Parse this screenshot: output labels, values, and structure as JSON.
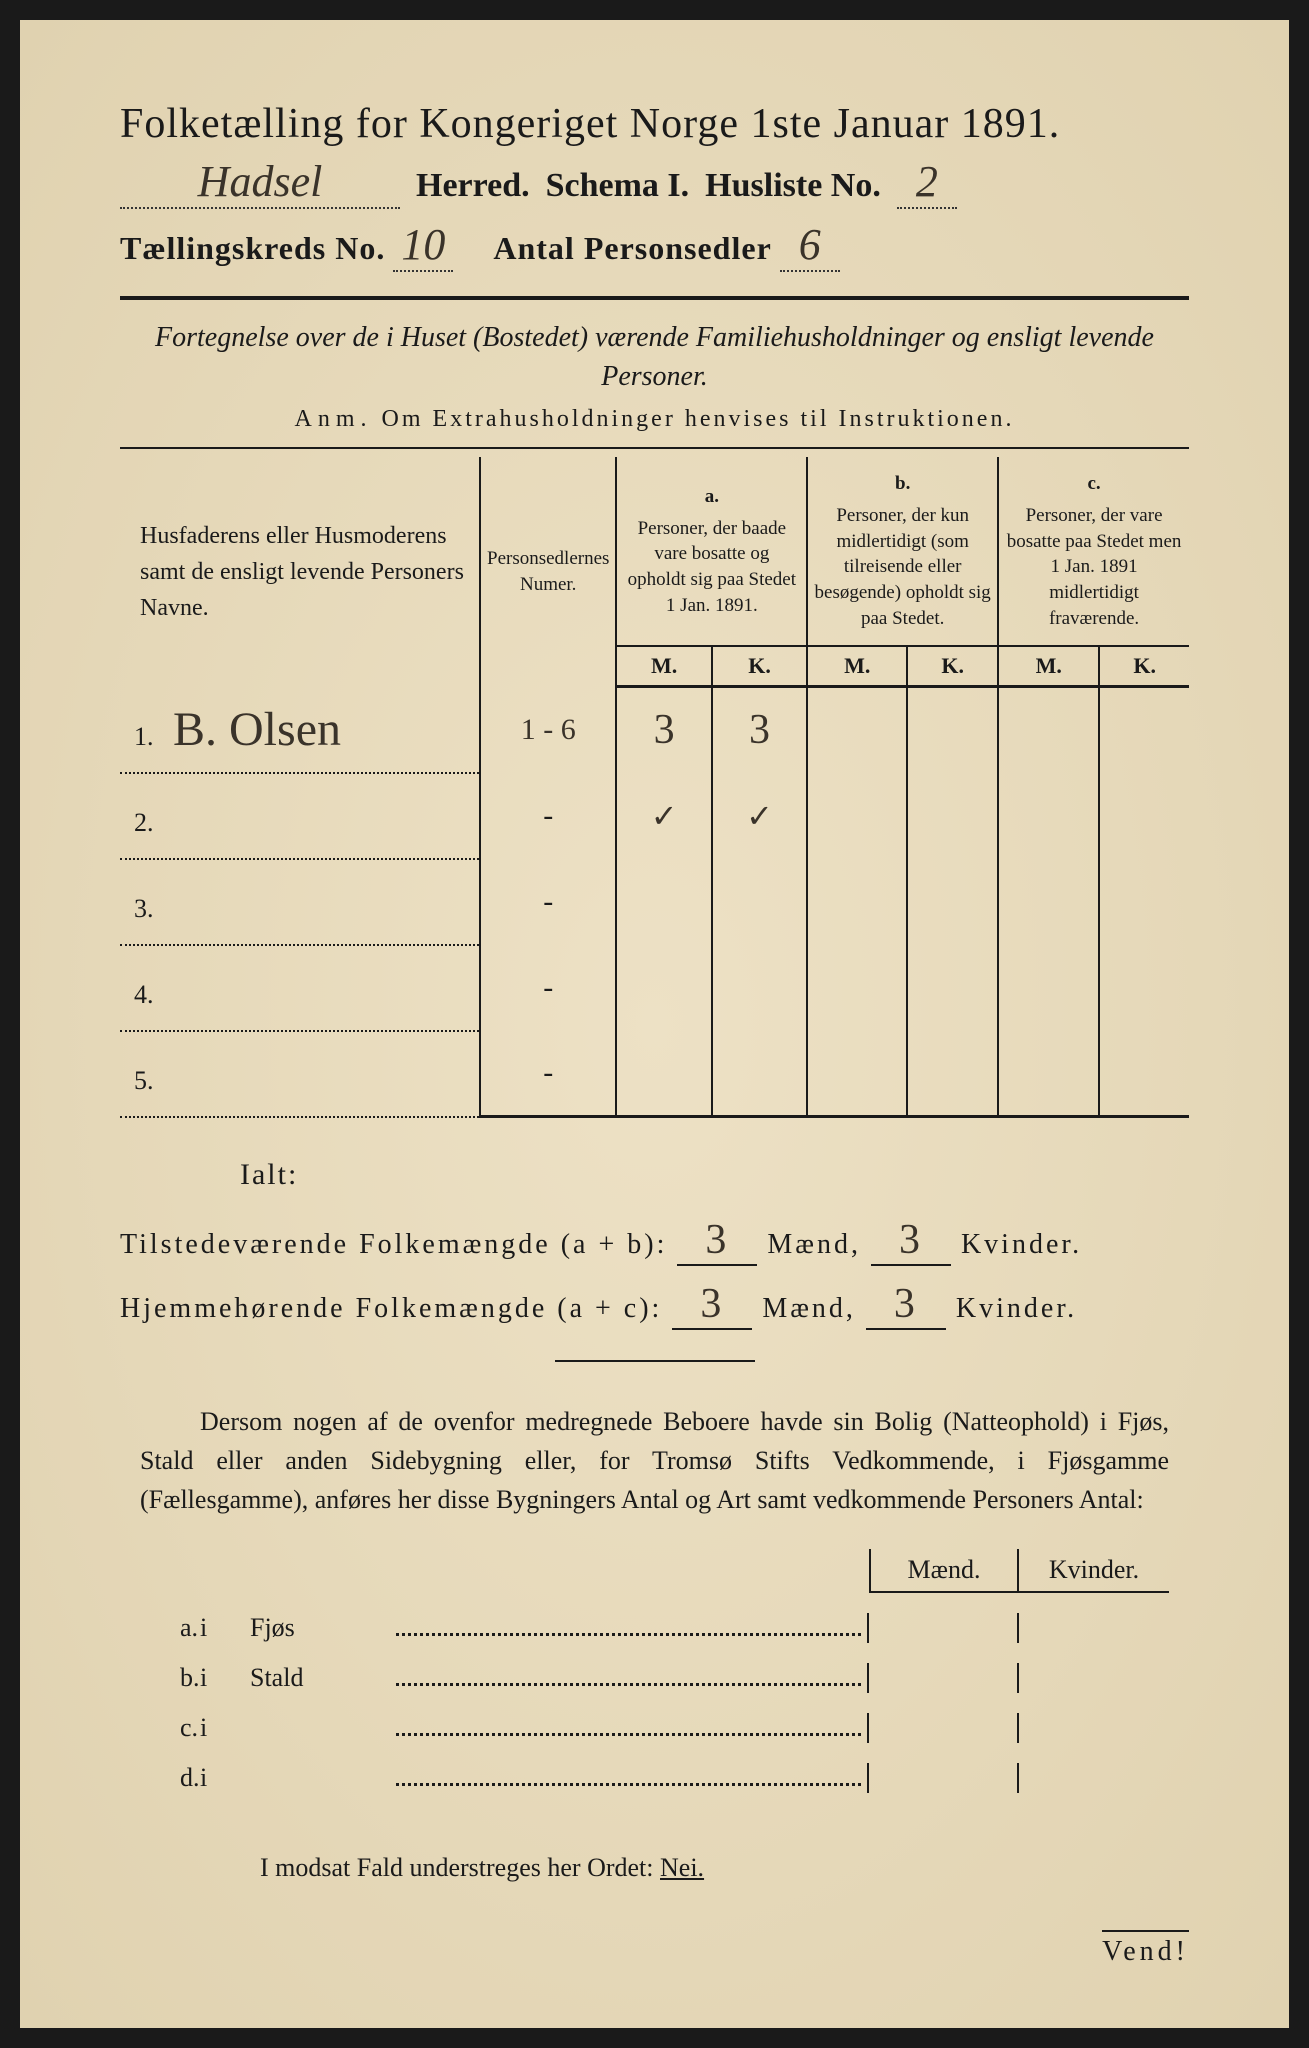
{
  "title": "Folketælling for Kongeriget Norge 1ste Januar 1891.",
  "header": {
    "herred_value": "Hadsel",
    "herred_label": "Herred.",
    "schema_label": "Schema I.",
    "husliste_label": "Husliste No.",
    "husliste_value": "2",
    "kreds_label": "Tællingskreds No.",
    "kreds_value": "10",
    "antal_label": "Antal Personsedler",
    "antal_value": "6"
  },
  "subtitle_italic": "Fortegnelse over de i Huset (Bostedet) værende Familiehusholdninger og ensligt levende Personer.",
  "anm_label": "Anm.",
  "anm_text": "Om Extrahusholdninger henvises til Instruktionen.",
  "table": {
    "col1": "Husfaderens eller Husmoderens samt de ensligt levende Personers Navne.",
    "col2": "Personsedlernes Numer.",
    "col_a_tag": "a.",
    "col_a": "Personer, der baade vare bosatte og opholdt sig paa Stedet 1 Jan. 1891.",
    "col_b_tag": "b.",
    "col_b": "Personer, der kun midlertidigt (som tilreisende eller besøgende) opholdt sig paa Stedet.",
    "col_c_tag": "c.",
    "col_c": "Personer, der vare bosatte paa Stedet men 1 Jan. 1891 midlertidigt fraværende.",
    "m": "M.",
    "k": "K.",
    "rows": [
      {
        "n": "1.",
        "name": "B. Olsen",
        "numer": "1 - 6",
        "am": "3",
        "ak": "3",
        "bm": "",
        "bk": "",
        "cm": "",
        "ck": ""
      },
      {
        "n": "2.",
        "name": "",
        "numer": "-",
        "am": "✓",
        "ak": "✓",
        "bm": "",
        "bk": "",
        "cm": "",
        "ck": ""
      },
      {
        "n": "3.",
        "name": "",
        "numer": "-",
        "am": "",
        "ak": "",
        "bm": "",
        "bk": "",
        "cm": "",
        "ck": ""
      },
      {
        "n": "4.",
        "name": "",
        "numer": "-",
        "am": "",
        "ak": "",
        "bm": "",
        "bk": "",
        "cm": "",
        "ck": ""
      },
      {
        "n": "5.",
        "name": "",
        "numer": "-",
        "am": "",
        "ak": "",
        "bm": "",
        "bk": "",
        "cm": "",
        "ck": ""
      }
    ]
  },
  "ialt": "Ialt:",
  "totals": {
    "line1_label": "Tilstedeværende Folkemængde (a + b):",
    "line2_label": "Hjemmehørende Folkemængde (a + c):",
    "maend": "Mænd,",
    "kvinder": "Kvinder.",
    "l1m": "3",
    "l1k": "3",
    "l2m": "3",
    "l2k": "3"
  },
  "paragraph": "Dersom nogen af de ovenfor medregnede Beboere havde sin Bolig (Natteophold) i Fjøs, Stald eller anden Sidebygning eller, for Tromsø Stifts Vedkommende, i Fjøsgamme (Fællesgamme), anføres her disse Bygningers Antal og Art samt vedkommende Personers Antal:",
  "building": {
    "maend": "Mænd.",
    "kvinder": "Kvinder.",
    "rows": [
      {
        "l": "a.",
        "i": "i",
        "name": "Fjøs"
      },
      {
        "l": "b.",
        "i": "i",
        "name": "Stald"
      },
      {
        "l": "c.",
        "i": "i",
        "name": ""
      },
      {
        "l": "d.",
        "i": "i",
        "name": ""
      }
    ]
  },
  "nei_line_pre": "I modsat Fald understreges her Ordet: ",
  "nei": "Nei.",
  "vend": "Vend!",
  "colors": {
    "paper": "#e8dcc0",
    "ink": "#1a1a1a",
    "handwriting": "#3a332a"
  }
}
